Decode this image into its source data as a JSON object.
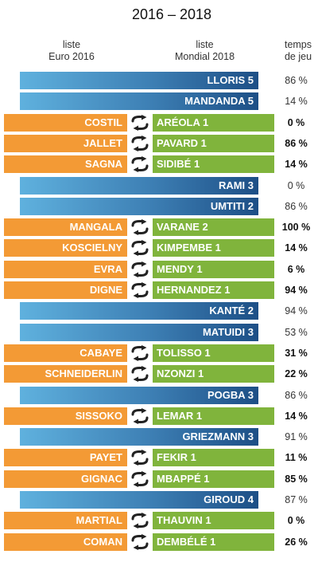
{
  "title": "2016 – 2018",
  "headers": {
    "left": [
      "liste",
      "Euro 2016"
    ],
    "middle": [
      "liste",
      "Mondial 2018"
    ],
    "right": [
      "temps",
      "de jeu"
    ]
  },
  "colors": {
    "kept": "#3d7fb4",
    "euro": "#f39a35",
    "mondial": "#80b43c"
  },
  "icons": {
    "swap": "swap-arrows-icon"
  },
  "rows": [
    {
      "type": "kept",
      "name": "LLORIS 5",
      "pct": "86 %"
    },
    {
      "type": "kept",
      "name": "MANDANDA 5",
      "pct": "14 %"
    },
    {
      "type": "swap",
      "euro": "COSTIL",
      "mondial": "ARÉOLA 1",
      "pct": "0 %"
    },
    {
      "type": "swap",
      "euro": "JALLET",
      "mondial": "PAVARD 1",
      "pct": "86 %"
    },
    {
      "type": "swap",
      "euro": "SAGNA",
      "mondial": "SIDIBÉ 1",
      "pct": "14 %"
    },
    {
      "type": "kept",
      "name": "RAMI 3",
      "pct": "0 %"
    },
    {
      "type": "kept",
      "name": "UMTITI 2",
      "pct": "86 %"
    },
    {
      "type": "swap",
      "euro": "MANGALA",
      "mondial": "VARANE 2",
      "pct": "100 %"
    },
    {
      "type": "swap",
      "euro": "KOSCIELNY",
      "mondial": "KIMPEMBE 1",
      "pct": "14 %"
    },
    {
      "type": "swap",
      "euro": "EVRA",
      "mondial": "MENDY 1",
      "pct": "6 %"
    },
    {
      "type": "swap",
      "euro": "DIGNE",
      "mondial": "HERNANDEZ 1",
      "pct": "94 %"
    },
    {
      "type": "kept",
      "name": "KANTÉ 2",
      "pct": "94 %"
    },
    {
      "type": "kept",
      "name": "MATUIDI 3",
      "pct": "53 %"
    },
    {
      "type": "swap",
      "euro": "CABAYE",
      "mondial": "TOLISSO 1",
      "pct": "31 %"
    },
    {
      "type": "swap",
      "euro": "SCHNEIDERLIN",
      "mondial": "NZONZI 1",
      "pct": "22 %"
    },
    {
      "type": "kept",
      "name": "POGBA 3",
      "pct": "86 %"
    },
    {
      "type": "swap",
      "euro": "SISSOKO",
      "mondial": "LEMAR 1",
      "pct": "14 %"
    },
    {
      "type": "kept",
      "name": "GRIEZMANN 3",
      "pct": "91 %"
    },
    {
      "type": "swap",
      "euro": "PAYET",
      "mondial": "FEKIR 1",
      "pct": "11 %"
    },
    {
      "type": "swap",
      "euro": "GIGNAC",
      "mondial": "MBAPPÉ 1",
      "pct": "85 %"
    },
    {
      "type": "kept",
      "name": "GIROUD 4",
      "pct": "87 %"
    },
    {
      "type": "swap",
      "euro": "MARTIAL",
      "mondial": "THAUVIN 1",
      "pct": "0 %"
    },
    {
      "type": "swap",
      "euro": "COMAN",
      "mondial": "DEMBÉLÉ 1",
      "pct": "26 %"
    }
  ]
}
